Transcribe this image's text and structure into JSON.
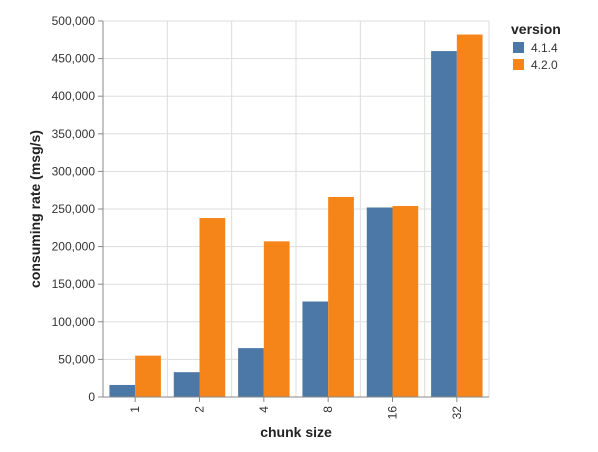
{
  "chart_data": {
    "type": "bar",
    "categories": [
      "1",
      "2",
      "4",
      "8",
      "16",
      "32"
    ],
    "series": [
      {
        "name": "4.1.4",
        "color": "#4c78a8",
        "values": [
          16000,
          33000,
          65000,
          127000,
          252000,
          460000
        ]
      },
      {
        "name": "4.2.0",
        "color": "#f58518",
        "values": [
          55000,
          238000,
          207000,
          266000,
          254000,
          482000
        ]
      }
    ],
    "xlabel": "chunk size",
    "ylabel": "consuming rate (msg/s)",
    "ylim": [
      0,
      500000
    ],
    "yticks": [
      "0",
      "50,000",
      "100,000",
      "150,000",
      "200,000",
      "250,000",
      "300,000",
      "350,000",
      "400,000",
      "450,000",
      "500,000"
    ],
    "ytick_values": [
      0,
      50000,
      100000,
      150000,
      200000,
      250000,
      300000,
      350000,
      400000,
      450000,
      500000
    ],
    "grid": true,
    "legend": {
      "title": "version",
      "position": "right"
    }
  }
}
